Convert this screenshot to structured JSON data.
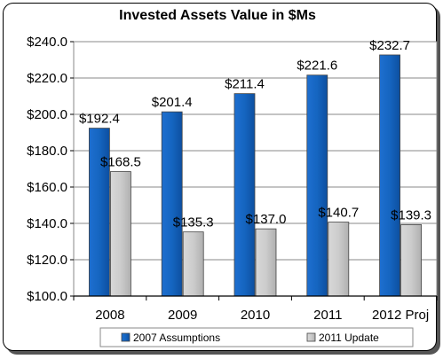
{
  "chart_data": {
    "type": "bar",
    "title": "Invested Assets Value in $Ms",
    "categories": [
      "2008",
      "2009",
      "2010",
      "2011",
      "2012 Proj"
    ],
    "series": [
      {
        "name": "2007 Assumptions",
        "values": [
          192.4,
          201.4,
          211.4,
          221.6,
          232.7
        ],
        "labels": [
          "$192.4",
          "$201.4",
          "$211.4",
          "$221.6",
          "$232.7"
        ],
        "color": "#1565C0"
      },
      {
        "name": "2011 Update",
        "values": [
          168.5,
          135.3,
          137.0,
          140.7,
          139.3
        ],
        "labels": [
          "$168.5",
          "$135.3",
          "$137.0",
          "$140.7",
          "$139.3"
        ],
        "color": "#CCCCCC"
      }
    ],
    "ylim": [
      100,
      240
    ],
    "yticks": [
      100,
      120,
      140,
      160,
      180,
      200,
      220,
      240
    ],
    "ytick_labels": [
      "$100.0",
      "$120.0",
      "$140.0",
      "$160.0",
      "$180.0",
      "$200.0",
      "$220.0",
      "$240.0"
    ],
    "grid": true,
    "legend": "bottom"
  }
}
